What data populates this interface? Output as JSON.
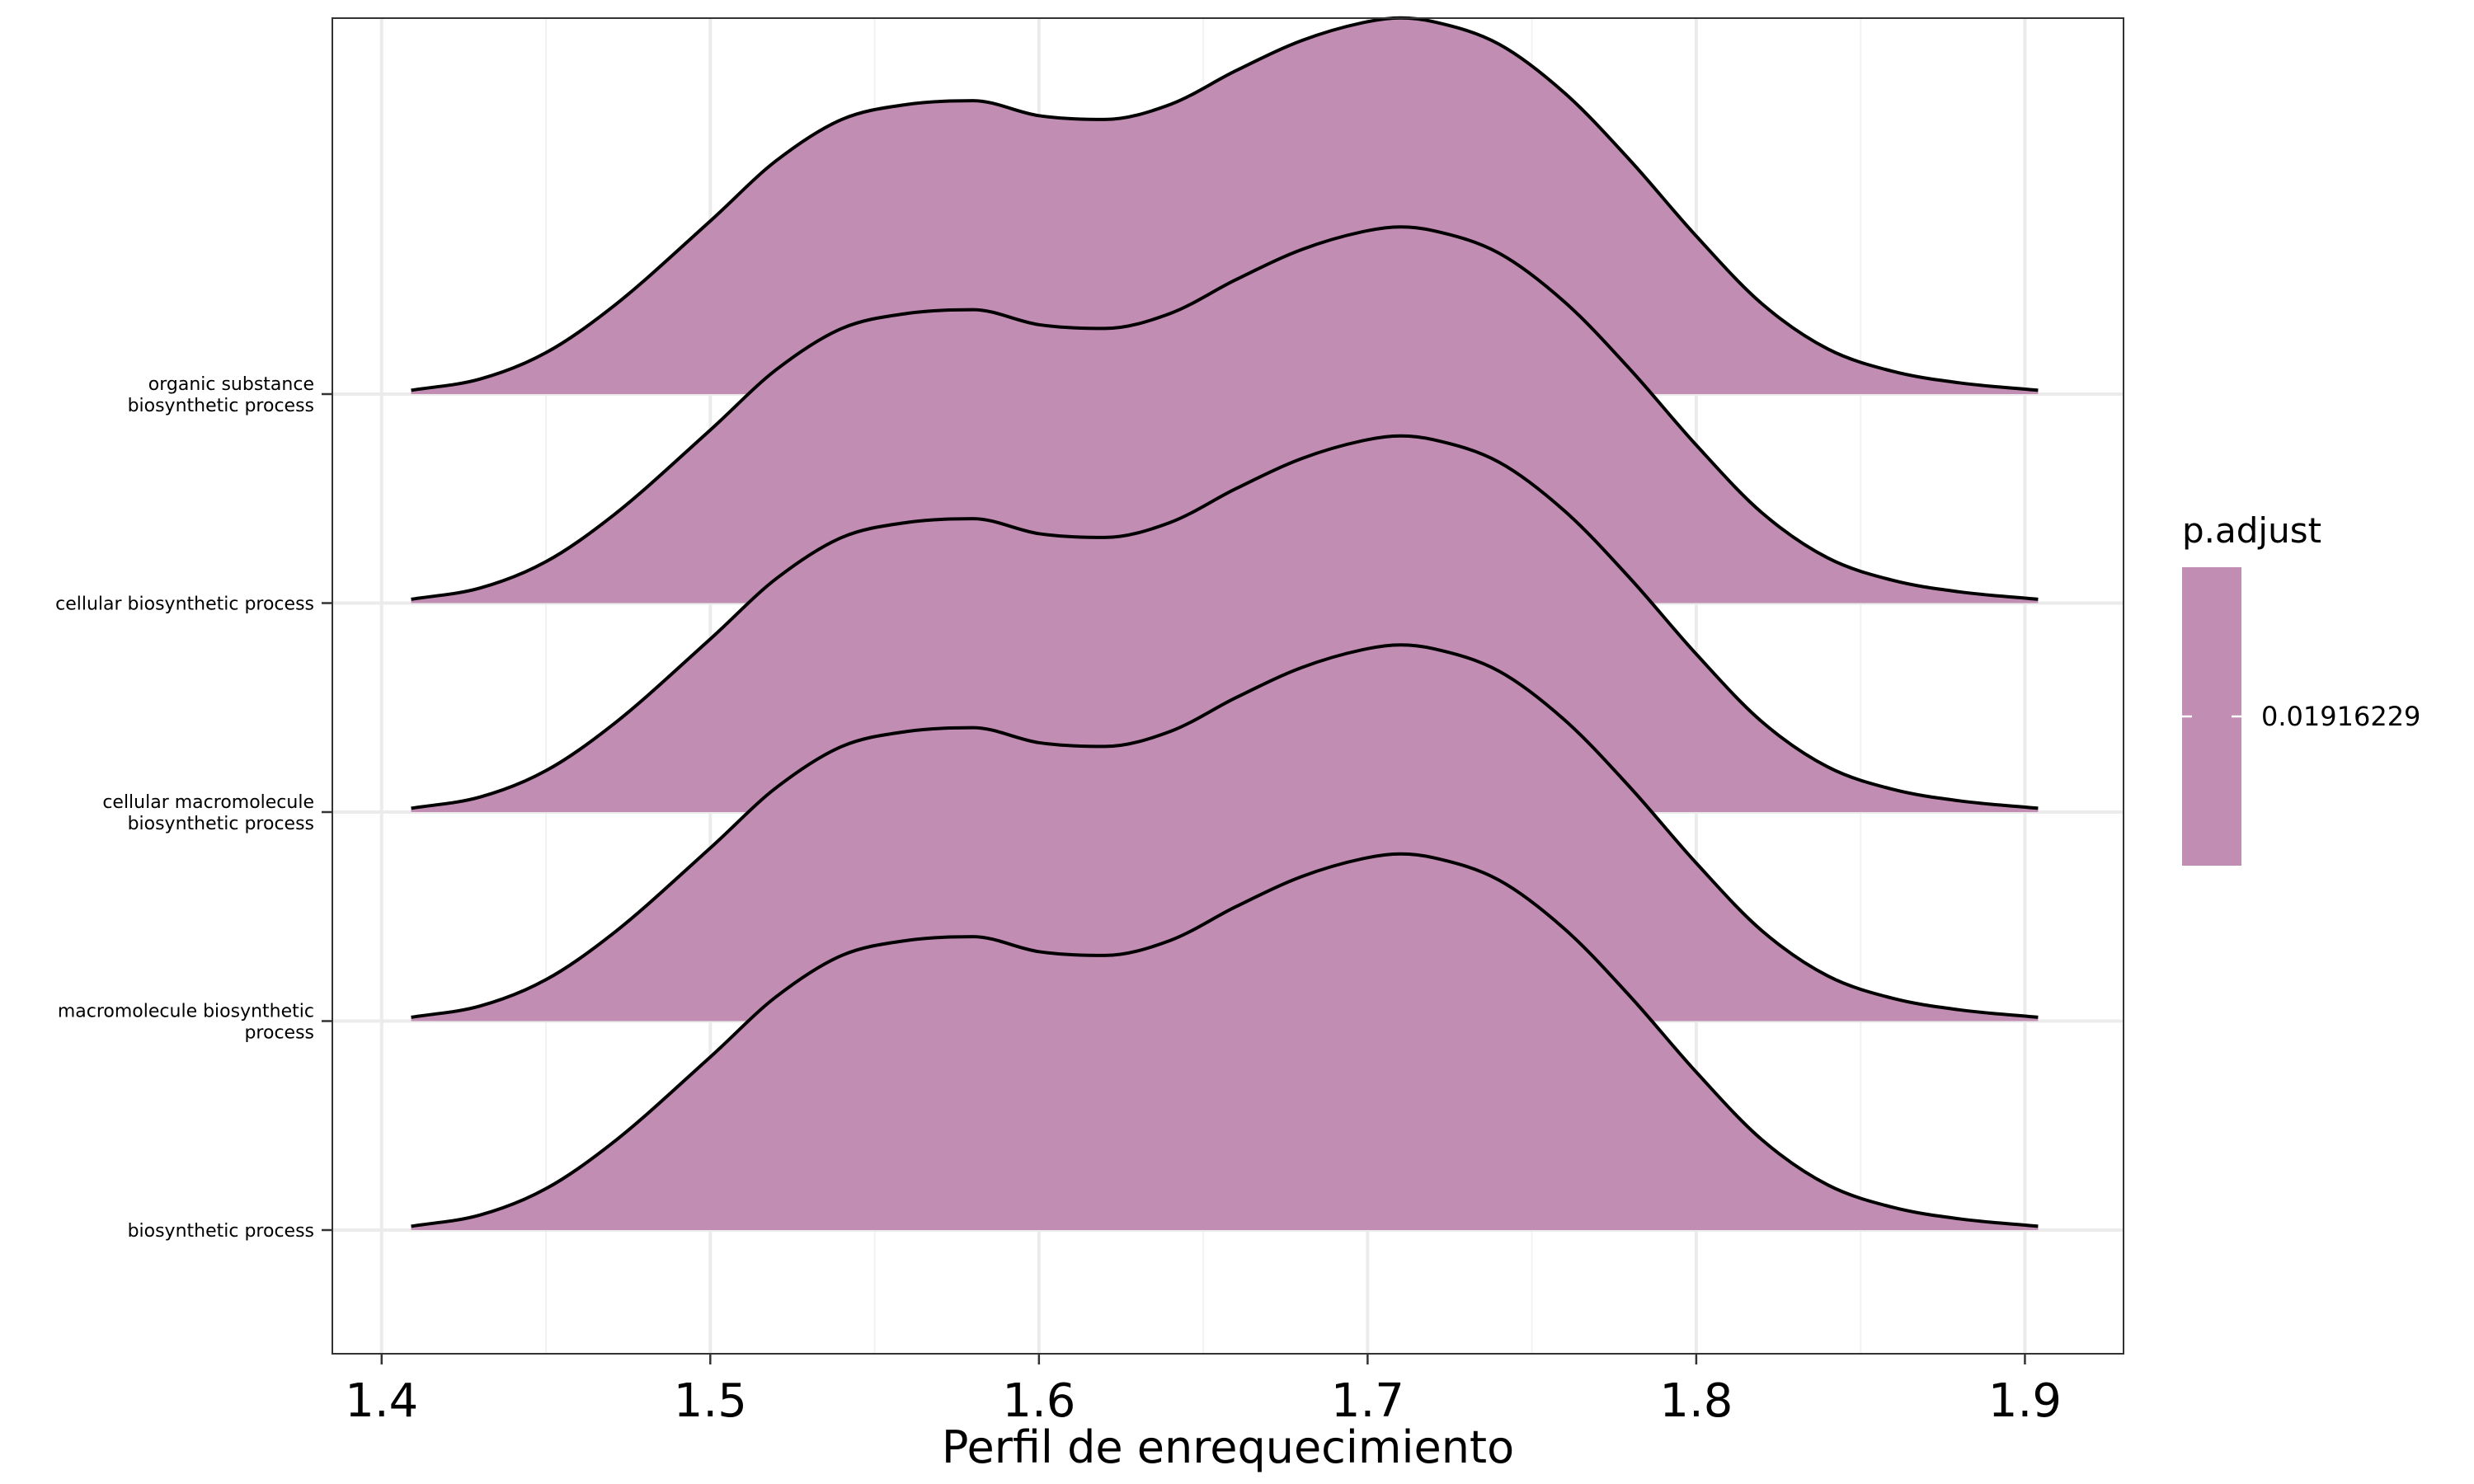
{
  "chart_data": {
    "type": "ridgeline",
    "xlabel": "Perfil de enrequecimiento",
    "ylabel": "",
    "xlim": [
      1.385,
      1.93
    ],
    "x_ticks": [
      1.4,
      1.5,
      1.6,
      1.7,
      1.8,
      1.9
    ],
    "x_tick_labels": [
      "1.4",
      "1.5",
      "1.6",
      "1.7",
      "1.8",
      "1.9"
    ],
    "grid": true,
    "categories": [
      [
        "biosynthetic process"
      ],
      [
        "macromolecule biosynthetic",
        "process"
      ],
      [
        "cellular macromolecule",
        "biosynthetic process"
      ],
      [
        "cellular biosynthetic process"
      ],
      [
        "organic substance",
        "biosynthetic process"
      ]
    ],
    "density": {
      "x": [
        1.409,
        1.43,
        1.45,
        1.47,
        1.5,
        1.52,
        1.54,
        1.56,
        1.58,
        1.6,
        1.62,
        1.64,
        1.66,
        1.68,
        1.7,
        1.71,
        1.72,
        1.74,
        1.76,
        1.78,
        1.8,
        1.82,
        1.84,
        1.86,
        1.88,
        1.904
      ],
      "y": [
        0.01,
        0.04,
        0.11,
        0.23,
        0.46,
        0.62,
        0.73,
        0.77,
        0.78,
        0.74,
        0.73,
        0.77,
        0.86,
        0.94,
        0.99,
        1.0,
        0.99,
        0.93,
        0.8,
        0.62,
        0.42,
        0.24,
        0.12,
        0.06,
        0.03,
        0.01
      ]
    },
    "ridge_height_rows": 1.8,
    "series": [
      {
        "category": "biosynthetic process",
        "p_adjust": 0.01916229
      },
      {
        "category": "macromolecule biosynthetic process",
        "p_adjust": 0.01916229
      },
      {
        "category": "cellular macromolecule biosynthetic process",
        "p_adjust": 0.01916229
      },
      {
        "category": "cellular biosynthetic process",
        "p_adjust": 0.01916229
      },
      {
        "category": "organic substance biosynthetic process",
        "p_adjust": 0.01916229
      }
    ],
    "legend": {
      "title": "p.adjust",
      "label": "0.01916229",
      "color": "#c28db3",
      "placement": "right"
    },
    "fill_color": "#c28db3",
    "line_color": "#000000"
  }
}
